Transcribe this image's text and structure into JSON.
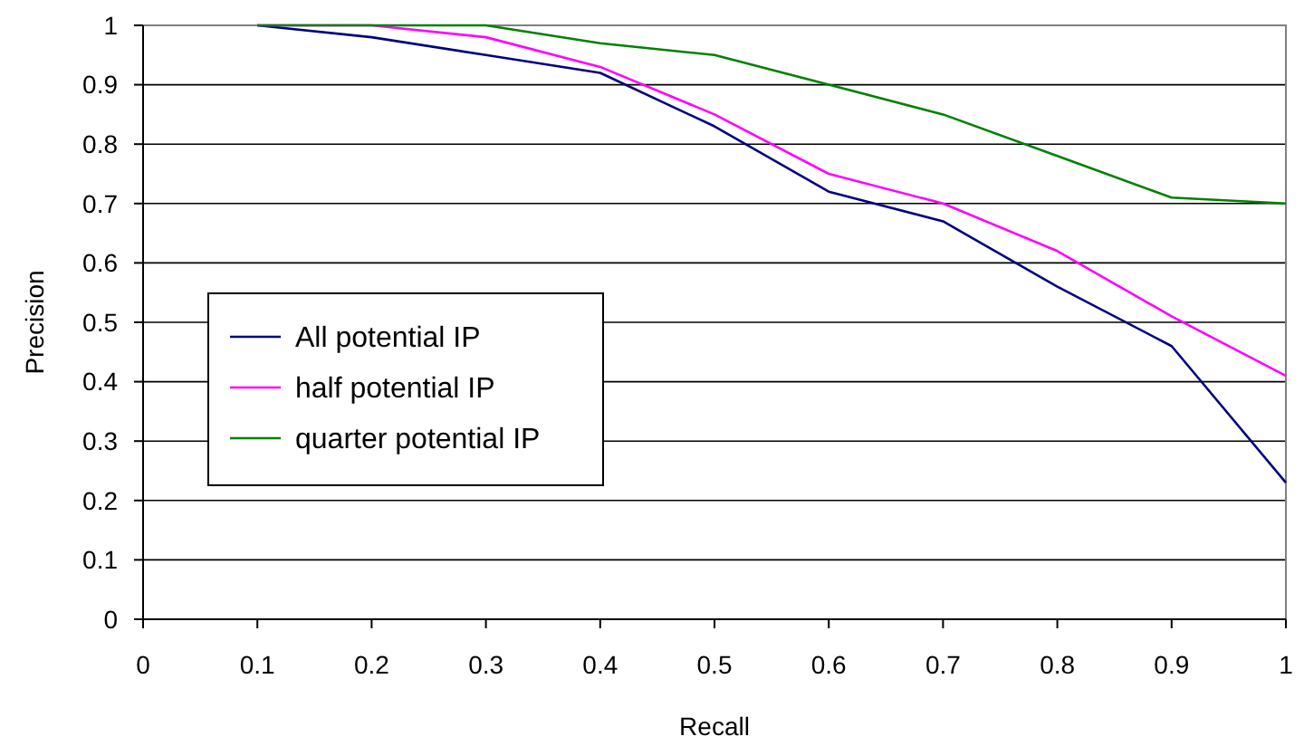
{
  "chart_data": {
    "type": "line",
    "xlabel": "Recall",
    "ylabel": "Precision",
    "x": [
      0.1,
      0.2,
      0.3,
      0.4,
      0.5,
      0.6,
      0.7,
      0.8,
      0.9,
      1
    ],
    "series": [
      {
        "name": "All potential IP",
        "color": "#000080",
        "values": [
          1,
          0.98,
          0.95,
          0.92,
          0.83,
          0.72,
          0.67,
          0.56,
          0.46,
          0.23
        ]
      },
      {
        "name": "half potential IP",
        "color": "#ff00ff",
        "values": [
          1,
          1,
          0.98,
          0.93,
          0.85,
          0.75,
          0.7,
          0.62,
          0.51,
          0.41
        ]
      },
      {
        "name": "quarter potential IP",
        "color": "#008000",
        "values": [
          1,
          1,
          1,
          0.97,
          0.95,
          0.9,
          0.85,
          0.78,
          0.71,
          0.7
        ]
      }
    ],
    "xlim": [
      0,
      1
    ],
    "xticks": [
      0,
      0.1,
      0.2,
      0.3,
      0.4,
      0.5,
      0.6,
      0.7,
      0.8,
      0.9,
      1
    ],
    "ylim": [
      0,
      1
    ],
    "yticks": [
      0,
      0.1,
      0.2,
      0.3,
      0.4,
      0.5,
      0.6,
      0.7,
      0.8,
      0.9,
      1
    ],
    "grid": "y",
    "legend": "left",
    "marker": "none",
    "line_style": "solid"
  }
}
